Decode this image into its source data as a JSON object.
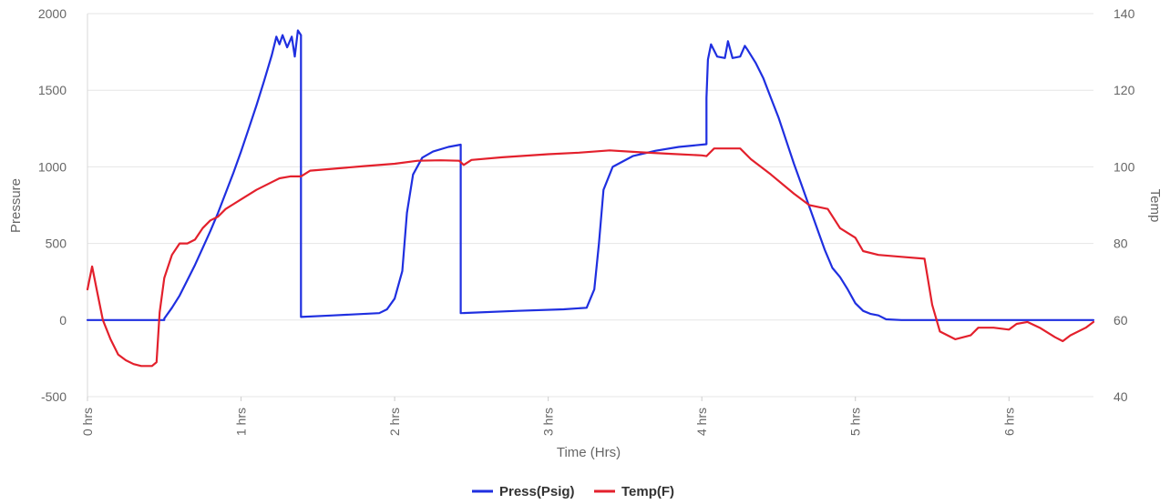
{
  "chart_data": {
    "type": "line",
    "xlabel": "Time (Hrs)",
    "ylabel_left": "Pressure",
    "ylabel_right": "Temp",
    "xlim": [
      0,
      6.55
    ],
    "ylim_left": [
      -500,
      2000
    ],
    "ylim_right": [
      40,
      140
    ],
    "x_ticks": [
      {
        "value": 0,
        "label": "0 hrs"
      },
      {
        "value": 1,
        "label": "1 hrs"
      },
      {
        "value": 2,
        "label": "2 hrs"
      },
      {
        "value": 3,
        "label": "3 hrs"
      },
      {
        "value": 4,
        "label": "4 hrs"
      },
      {
        "value": 5,
        "label": "5 hrs"
      },
      {
        "value": 6,
        "label": "6 hrs"
      }
    ],
    "y_ticks_left": [
      "-500",
      "0",
      "500",
      "1000",
      "1500",
      "2000"
    ],
    "y_ticks_right": [
      "40",
      "60",
      "80",
      "100",
      "120",
      "140"
    ],
    "grid": true,
    "legend_position": "bottom",
    "series": [
      {
        "name": "Press(Psig)",
        "axis": "left",
        "color": "#1f2fe0",
        "points": [
          [
            0,
            0
          ],
          [
            0.5,
            0
          ],
          [
            0.5,
            10
          ],
          [
            0.55,
            80
          ],
          [
            0.6,
            160
          ],
          [
            0.65,
            260
          ],
          [
            0.7,
            360
          ],
          [
            0.75,
            470
          ],
          [
            0.8,
            580
          ],
          [
            0.85,
            700
          ],
          [
            0.9,
            830
          ],
          [
            0.95,
            960
          ],
          [
            1.0,
            1100
          ],
          [
            1.05,
            1250
          ],
          [
            1.1,
            1400
          ],
          [
            1.15,
            1560
          ],
          [
            1.2,
            1730
          ],
          [
            1.23,
            1850
          ],
          [
            1.25,
            1800
          ],
          [
            1.27,
            1860
          ],
          [
            1.3,
            1780
          ],
          [
            1.33,
            1850
          ],
          [
            1.35,
            1720
          ],
          [
            1.37,
            1890
          ],
          [
            1.39,
            1860
          ],
          [
            1.39,
            20
          ],
          [
            1.6,
            30
          ],
          [
            1.9,
            45
          ],
          [
            1.95,
            70
          ],
          [
            2.0,
            140
          ],
          [
            2.05,
            320
          ],
          [
            2.08,
            700
          ],
          [
            2.12,
            950
          ],
          [
            2.18,
            1060
          ],
          [
            2.25,
            1100
          ],
          [
            2.35,
            1130
          ],
          [
            2.43,
            1145
          ],
          [
            2.43,
            45
          ],
          [
            2.8,
            60
          ],
          [
            3.1,
            70
          ],
          [
            3.25,
            80
          ],
          [
            3.3,
            200
          ],
          [
            3.33,
            500
          ],
          [
            3.36,
            850
          ],
          [
            3.42,
            1000
          ],
          [
            3.55,
            1070
          ],
          [
            3.7,
            1105
          ],
          [
            3.85,
            1130
          ],
          [
            4.03,
            1148
          ],
          [
            4.03,
            1450
          ],
          [
            4.04,
            1700
          ],
          [
            4.06,
            1800
          ],
          [
            4.1,
            1720
          ],
          [
            4.15,
            1710
          ],
          [
            4.17,
            1820
          ],
          [
            4.2,
            1710
          ],
          [
            4.25,
            1720
          ],
          [
            4.28,
            1790
          ],
          [
            4.3,
            1760
          ],
          [
            4.35,
            1680
          ],
          [
            4.4,
            1580
          ],
          [
            4.45,
            1450
          ],
          [
            4.5,
            1320
          ],
          [
            4.55,
            1170
          ],
          [
            4.6,
            1020
          ],
          [
            4.65,
            880
          ],
          [
            4.7,
            740
          ],
          [
            4.75,
            600
          ],
          [
            4.8,
            460
          ],
          [
            4.85,
            340
          ],
          [
            4.9,
            280
          ],
          [
            4.95,
            200
          ],
          [
            5.0,
            110
          ],
          [
            5.05,
            60
          ],
          [
            5.1,
            40
          ],
          [
            5.15,
            30
          ],
          [
            5.2,
            5
          ],
          [
            5.3,
            0
          ],
          [
            6.55,
            0
          ]
        ]
      },
      {
        "name": "Temp(F)",
        "axis": "right",
        "color": "#e3202c",
        "points": [
          [
            0,
            68
          ],
          [
            0.03,
            74
          ],
          [
            0.06,
            68
          ],
          [
            0.1,
            60
          ],
          [
            0.15,
            55
          ],
          [
            0.2,
            51
          ],
          [
            0.25,
            49.5
          ],
          [
            0.3,
            48.5
          ],
          [
            0.35,
            48
          ],
          [
            0.42,
            48
          ],
          [
            0.45,
            49
          ],
          [
            0.47,
            62
          ],
          [
            0.5,
            71
          ],
          [
            0.55,
            77
          ],
          [
            0.6,
            80
          ],
          [
            0.65,
            80
          ],
          [
            0.7,
            81
          ],
          [
            0.75,
            84
          ],
          [
            0.8,
            86
          ],
          [
            0.85,
            87
          ],
          [
            0.9,
            89
          ],
          [
            1.0,
            91.5
          ],
          [
            1.1,
            94
          ],
          [
            1.2,
            96
          ],
          [
            1.25,
            97
          ],
          [
            1.32,
            97.5
          ],
          [
            1.39,
            97.5
          ],
          [
            1.45,
            99
          ],
          [
            1.6,
            99.5
          ],
          [
            1.8,
            100.2
          ],
          [
            2.0,
            100.8
          ],
          [
            2.15,
            101.6
          ],
          [
            2.3,
            101.7
          ],
          [
            2.42,
            101.6
          ],
          [
            2.45,
            100.5
          ],
          [
            2.5,
            101.8
          ],
          [
            2.7,
            102.5
          ],
          [
            3.0,
            103.3
          ],
          [
            3.2,
            103.7
          ],
          [
            3.4,
            104.3
          ],
          [
            3.6,
            103.8
          ],
          [
            3.8,
            103.4
          ],
          [
            4.0,
            103
          ],
          [
            4.03,
            102.8
          ],
          [
            4.08,
            104.8
          ],
          [
            4.25,
            104.8
          ],
          [
            4.32,
            102
          ],
          [
            4.45,
            98
          ],
          [
            4.6,
            93
          ],
          [
            4.7,
            90
          ],
          [
            4.82,
            89
          ],
          [
            4.9,
            84
          ],
          [
            5.0,
            81.5
          ],
          [
            5.05,
            78
          ],
          [
            5.15,
            77
          ],
          [
            5.3,
            76.5
          ],
          [
            5.45,
            76
          ],
          [
            5.5,
            64
          ],
          [
            5.55,
            57
          ],
          [
            5.65,
            55
          ],
          [
            5.75,
            56
          ],
          [
            5.8,
            58
          ],
          [
            5.9,
            58
          ],
          [
            6.0,
            57.5
          ],
          [
            6.05,
            59
          ],
          [
            6.12,
            59.5
          ],
          [
            6.2,
            58
          ],
          [
            6.3,
            55.5
          ],
          [
            6.35,
            54.5
          ],
          [
            6.4,
            56
          ],
          [
            6.5,
            58
          ],
          [
            6.55,
            59.5
          ]
        ]
      }
    ]
  }
}
